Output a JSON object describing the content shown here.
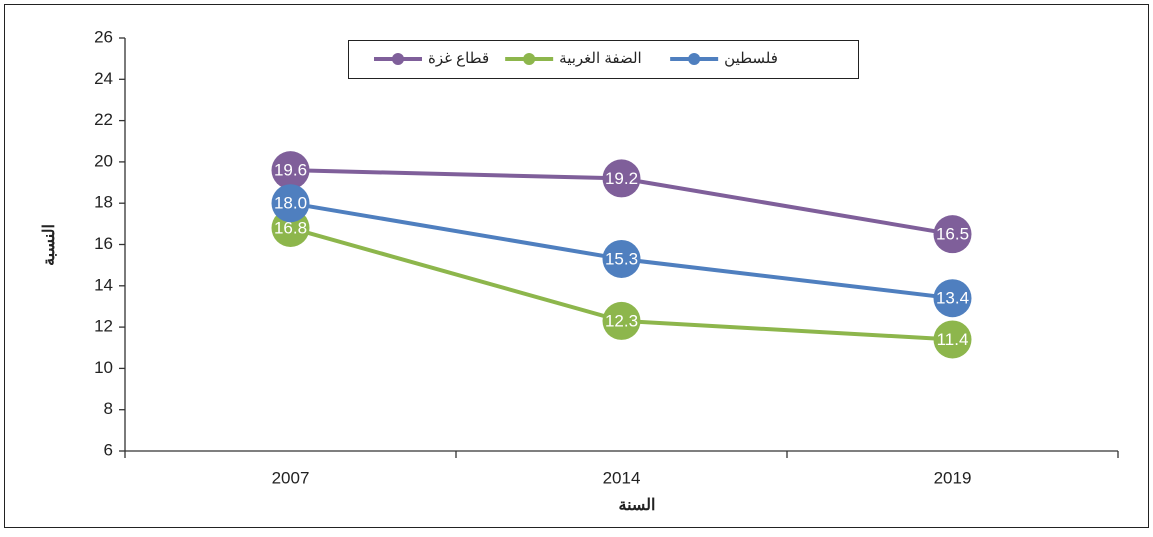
{
  "chart_data": {
    "type": "line",
    "categories": [
      "2007",
      "2014",
      "2019"
    ],
    "x_label": "السنة",
    "y_label": "النسبة",
    "series": [
      {
        "name": "قطاع غزة",
        "color": "#7f5f9a",
        "values": [
          19.6,
          19.2,
          16.5
        ]
      },
      {
        "name": "الضفة الغربية",
        "color": "#8db64c",
        "values": [
          16.8,
          12.3,
          11.4
        ]
      },
      {
        "name": "فلسطين",
        "color": "#4f7fbf",
        "values": [
          18.0,
          15.3,
          13.4
        ],
        "value_labels": [
          "18.0",
          "15.3",
          "13.4"
        ]
      }
    ],
    "ylim": [
      6,
      26
    ],
    "yticks": [
      6,
      8,
      10,
      12,
      14,
      16,
      18,
      20,
      22,
      24,
      26
    ],
    "grid": false,
    "legend": "top"
  }
}
